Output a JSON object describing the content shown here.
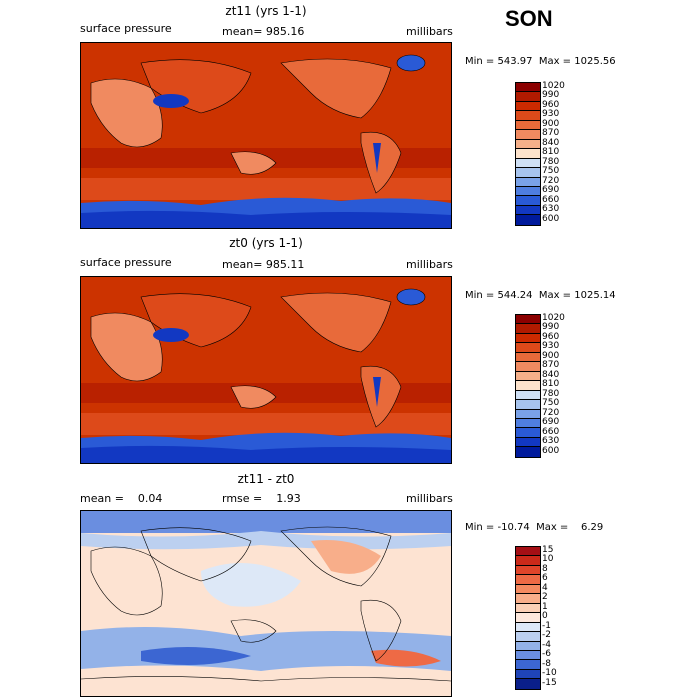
{
  "season": "SON",
  "panels": [
    {
      "title": "zt11 (yrs 1-1)",
      "left_label": "surface pressure",
      "center_label": "mean= 985.16",
      "right_label": "millibars",
      "minmax": "Min = 543.97  Max = 1025.56",
      "colorbar_levels": [
        "1020",
        "990",
        "960",
        "930",
        "900",
        "870",
        "840",
        "810",
        "780",
        "750",
        "720",
        "690",
        "660",
        "630",
        "600"
      ],
      "colorbar_colors": [
        "#8b0000",
        "#b01a00",
        "#cc2a00",
        "#dd4a1a",
        "#e86a3a",
        "#f08a60",
        "#f5b08a",
        "#fde3cc",
        "#cfe0f5",
        "#a7c4ee",
        "#7aa2e8",
        "#4f7ee0",
        "#2a5ad6",
        "#1238c2",
        "#001a9c"
      ],
      "map_fill": "#cc3300"
    },
    {
      "title": "zt0 (yrs 1-1)",
      "left_label": "surface pressure",
      "center_label": "mean= 985.11",
      "right_label": "millibars",
      "minmax": "Min = 544.24  Max = 1025.14",
      "colorbar_levels": [
        "1020",
        "990",
        "960",
        "930",
        "900",
        "870",
        "840",
        "810",
        "780",
        "750",
        "720",
        "690",
        "660",
        "630",
        "600"
      ],
      "colorbar_colors": [
        "#8b0000",
        "#b01a00",
        "#cc2a00",
        "#dd4a1a",
        "#e86a3a",
        "#f08a60",
        "#f5b08a",
        "#fde3cc",
        "#cfe0f5",
        "#a7c4ee",
        "#7aa2e8",
        "#4f7ee0",
        "#2a5ad6",
        "#1238c2",
        "#001a9c"
      ],
      "map_fill": "#cc3300"
    },
    {
      "title": "zt11 - zt0",
      "left_label": "mean =    0.04",
      "center_label": "rmse =    1.93",
      "right_label": "millibars",
      "minmax": "Min = -10.74  Max =    6.29",
      "colorbar_levels": [
        "15",
        "10",
        "8",
        "6",
        "4",
        "2",
        "1",
        "0",
        "-1",
        "-2",
        "-4",
        "-6",
        "-8",
        "-10",
        "-15"
      ],
      "colorbar_colors": [
        "#a50f15",
        "#cb2a1a",
        "#e0452a",
        "#ee6a45",
        "#f48a60",
        "#f8ae8a",
        "#fbd0b6",
        "#fde8dc",
        "#dde8f7",
        "#bcd0f0",
        "#93b2e8",
        "#6a8ee0",
        "#3c66d2",
        "#1f44b8",
        "#0a1f8a"
      ],
      "map_fill": "#fde3d2"
    }
  ]
}
